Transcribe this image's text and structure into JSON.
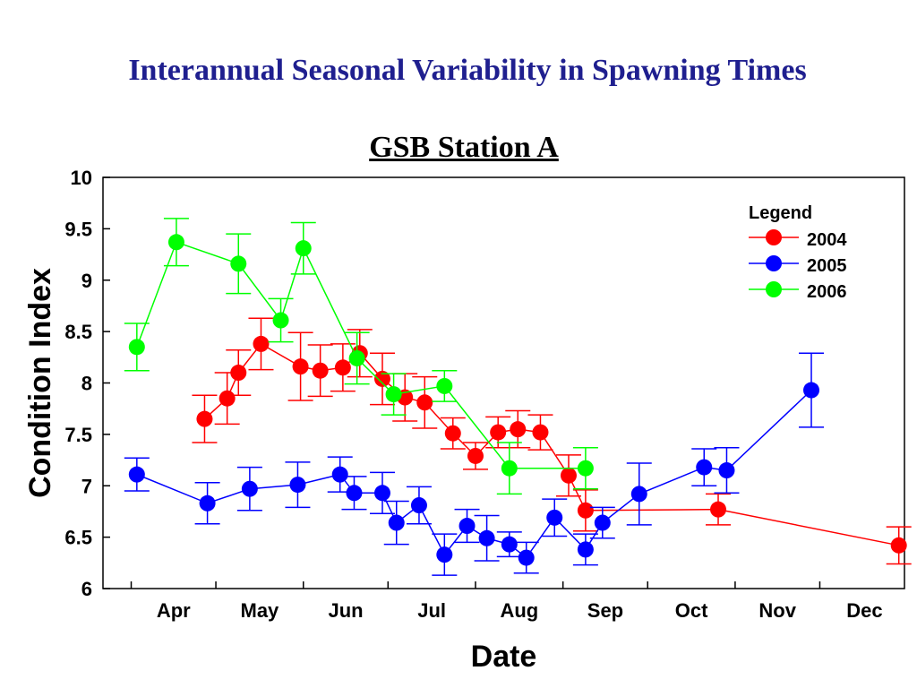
{
  "slide": {
    "title": "Interannual Seasonal Variability in Spawning Times"
  },
  "chart_data": {
    "type": "line",
    "title": "GSB Station A",
    "xlabel": "Date",
    "ylabel": "Condition Index",
    "ylim": [
      6,
      10
    ],
    "yticks": [
      "6",
      "6.5",
      "7",
      "7.5",
      "8",
      "8.5",
      "9",
      "9.5",
      "10"
    ],
    "xlim": [
      "2000-03-22",
      "2000-12-31"
    ],
    "month_labels": [
      "Apr",
      "May",
      "Jun",
      "Jul",
      "Aug",
      "Sep",
      "Oct",
      "Nov",
      "Dec"
    ],
    "month_start_dates": [
      "2000-04-01",
      "2000-05-01",
      "2000-06-01",
      "2000-07-01",
      "2000-08-01",
      "2000-09-01",
      "2000-10-01",
      "2000-11-01",
      "2000-12-01"
    ],
    "grid": false,
    "error_bars": true,
    "legend": {
      "title": "Legend",
      "position": "top-right"
    },
    "series": [
      {
        "name": "2004",
        "color": "#ff0000",
        "points": [
          {
            "x": "2000-04-27",
            "y": 7.65,
            "err": 0.23
          },
          {
            "x": "2000-05-05",
            "y": 7.85,
            "err": 0.25
          },
          {
            "x": "2000-05-09",
            "y": 8.1,
            "err": 0.22
          },
          {
            "x": "2000-05-17",
            "y": 8.38,
            "err": 0.25
          },
          {
            "x": "2000-05-31",
            "y": 8.16,
            "err": 0.33
          },
          {
            "x": "2000-06-07",
            "y": 8.12,
            "err": 0.25
          },
          {
            "x": "2000-06-15",
            "y": 8.15,
            "err": 0.23
          },
          {
            "x": "2000-06-21",
            "y": 8.29,
            "err": 0.23
          },
          {
            "x": "2000-06-29",
            "y": 8.04,
            "err": 0.25
          },
          {
            "x": "2000-07-07",
            "y": 7.86,
            "err": 0.23
          },
          {
            "x": "2000-07-14",
            "y": 7.81,
            "err": 0.25
          },
          {
            "x": "2000-07-24",
            "y": 7.51,
            "err": 0.15
          },
          {
            "x": "2000-08-01",
            "y": 7.29,
            "err": 0.13
          },
          {
            "x": "2000-08-09",
            "y": 7.52,
            "err": 0.15
          },
          {
            "x": "2000-08-16",
            "y": 7.55,
            "err": 0.18
          },
          {
            "x": "2000-08-24",
            "y": 7.52,
            "err": 0.17
          },
          {
            "x": "2000-09-03",
            "y": 7.1,
            "err": 0.2
          },
          {
            "x": "2000-09-09",
            "y": 6.76,
            "err": 0.2
          },
          {
            "x": "2000-10-26",
            "y": 6.77,
            "err": 0.15
          },
          {
            "x": "2000-12-29",
            "y": 6.42,
            "err": 0.18
          }
        ]
      },
      {
        "name": "2005",
        "color": "#0000ff",
        "points": [
          {
            "x": "2000-04-03",
            "y": 7.11,
            "err": 0.16
          },
          {
            "x": "2000-04-28",
            "y": 6.83,
            "err": 0.2
          },
          {
            "x": "2000-05-13",
            "y": 6.97,
            "err": 0.21
          },
          {
            "x": "2000-05-30",
            "y": 7.01,
            "err": 0.22
          },
          {
            "x": "2000-06-14",
            "y": 7.11,
            "err": 0.17
          },
          {
            "x": "2000-06-19",
            "y": 6.93,
            "err": 0.16
          },
          {
            "x": "2000-06-29",
            "y": 6.93,
            "err": 0.2
          },
          {
            "x": "2000-07-04",
            "y": 6.64,
            "err": 0.21
          },
          {
            "x": "2000-07-12",
            "y": 6.81,
            "err": 0.18
          },
          {
            "x": "2000-07-21",
            "y": 6.33,
            "err": 0.2
          },
          {
            "x": "2000-07-29",
            "y": 6.61,
            "err": 0.16
          },
          {
            "x": "2000-08-05",
            "y": 6.49,
            "err": 0.22
          },
          {
            "x": "2000-08-13",
            "y": 6.43,
            "err": 0.12
          },
          {
            "x": "2000-08-19",
            "y": 6.3,
            "err": 0.15
          },
          {
            "x": "2000-08-29",
            "y": 6.69,
            "err": 0.18
          },
          {
            "x": "2000-09-09",
            "y": 6.38,
            "err": 0.15
          },
          {
            "x": "2000-09-15",
            "y": 6.64,
            "err": 0.15
          },
          {
            "x": "2000-09-28",
            "y": 6.92,
            "err": 0.3
          },
          {
            "x": "2000-10-21",
            "y": 7.18,
            "err": 0.18
          },
          {
            "x": "2000-10-29",
            "y": 7.15,
            "err": 0.22
          },
          {
            "x": "2000-11-28",
            "y": 7.93,
            "err": 0.36
          }
        ]
      },
      {
        "name": "2006",
        "color": "#00ff00",
        "points": [
          {
            "x": "2000-04-03",
            "y": 8.35,
            "err": 0.23
          },
          {
            "x": "2000-04-17",
            "y": 9.37,
            "err": 0.23
          },
          {
            "x": "2000-05-09",
            "y": 9.16,
            "err": 0.29
          },
          {
            "x": "2000-05-24",
            "y": 8.61,
            "err": 0.21
          },
          {
            "x": "2000-06-01",
            "y": 9.31,
            "err": 0.25
          },
          {
            "x": "2000-06-20",
            "y": 8.24,
            "err": 0.25
          },
          {
            "x": "2000-07-03",
            "y": 7.89,
            "err": 0.2
          },
          {
            "x": "2000-07-21",
            "y": 7.97,
            "err": 0.15
          },
          {
            "x": "2000-08-13",
            "y": 7.17,
            "err": 0.25
          },
          {
            "x": "2000-09-09",
            "y": 7.17,
            "err": 0.2
          }
        ]
      }
    ]
  }
}
